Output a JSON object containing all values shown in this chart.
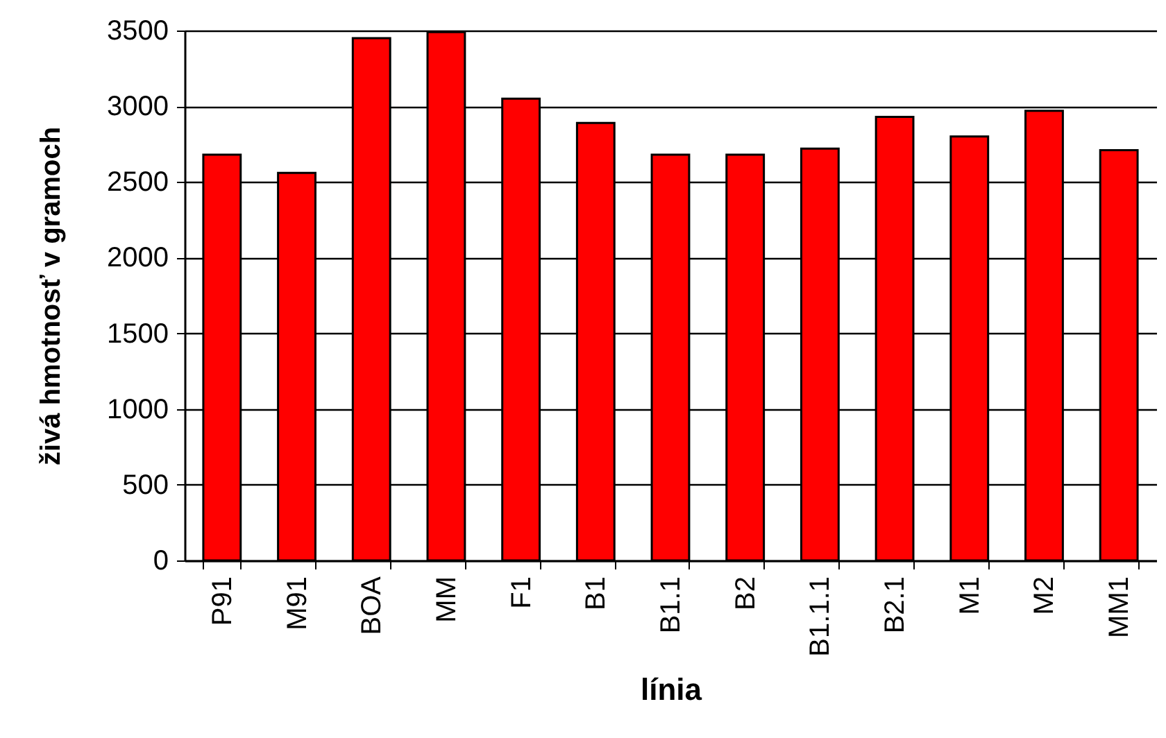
{
  "chart_data": {
    "type": "bar",
    "xlabel": "línia",
    "ylabel": "živá hmotnosť v gramoch",
    "categories": [
      "P91",
      "M91",
      "BOA",
      "MM",
      "F1",
      "B1",
      "B1.1",
      "B2",
      "B1.1.1",
      "B2.1",
      "M1",
      "M2",
      "MM1"
    ],
    "values": [
      2680,
      2560,
      3450,
      3490,
      3050,
      2890,
      2680,
      2680,
      2720,
      2930,
      2800,
      2970,
      2710
    ],
    "color": "#ff0000",
    "ylim": [
      0,
      3500
    ],
    "yticks": [
      0,
      500,
      1000,
      1500,
      2000,
      2500,
      3000,
      3500
    ],
    "grid": "y"
  }
}
